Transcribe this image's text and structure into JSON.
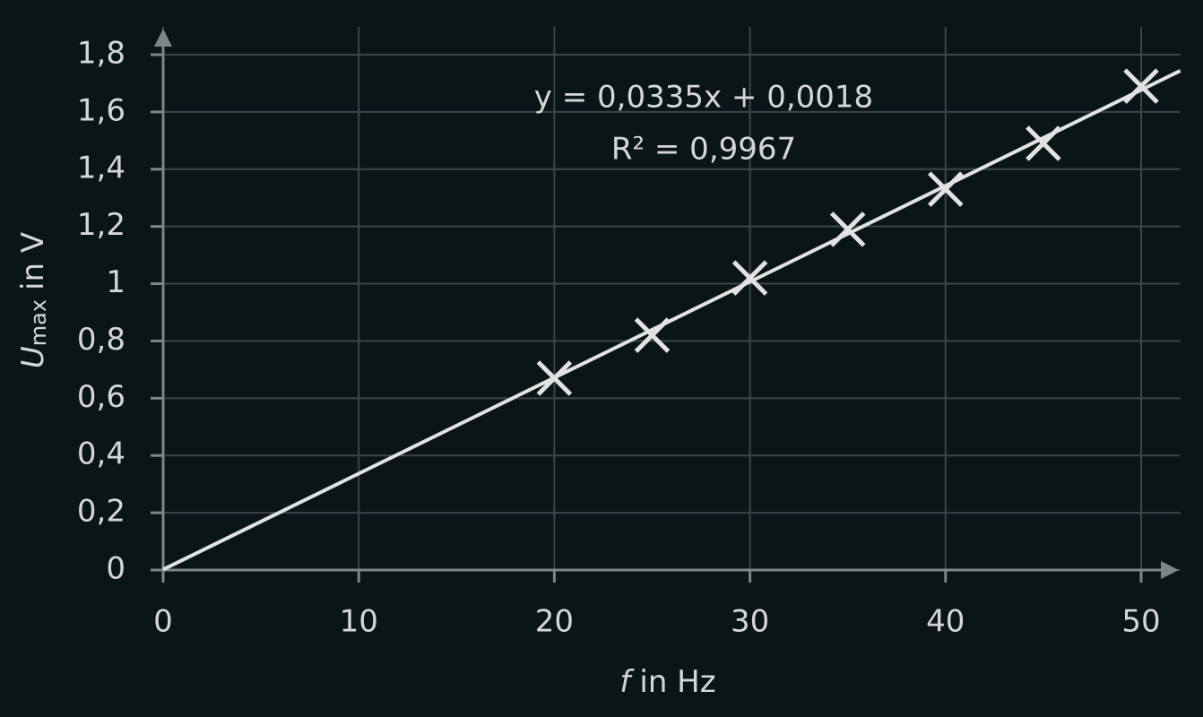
{
  "chart_data": {
    "type": "scatter",
    "x": [
      20,
      25,
      30,
      35,
      40,
      45,
      50
    ],
    "values": [
      0.67,
      0.82,
      1.02,
      1.19,
      1.33,
      1.49,
      1.69
    ],
    "color": "#e2e2e2",
    "trendline": {
      "slope": 0.0335,
      "intercept": 0.0018,
      "color": "#e2e2e2",
      "equation": "y = 0,0335x + 0,0018",
      "r_squared": "R² = 0,9967"
    },
    "xlabel": {
      "symbol": "f",
      "text": "in Hz"
    },
    "ylabel": {
      "symbol": "U",
      "subscript": "max",
      "text": "in V"
    },
    "xlim": [
      0,
      52
    ],
    "ylim": [
      0,
      1.87
    ],
    "xticks": [
      0,
      10,
      20,
      30,
      40,
      50
    ],
    "yticks": [
      0,
      {
        "value": 0.2,
        "label": "0,2"
      },
      {
        "value": 0.4,
        "label": "0,4"
      },
      {
        "value": 0.6,
        "label": "0,6"
      },
      {
        "value": 0.8,
        "label": "0,8"
      },
      1,
      {
        "value": 1.2,
        "label": "1,2"
      },
      {
        "value": 1.4,
        "label": "1,4"
      },
      {
        "value": 1.6,
        "label": "1,6"
      },
      {
        "value": 1.8,
        "label": "1,8"
      }
    ],
    "grid": true
  }
}
